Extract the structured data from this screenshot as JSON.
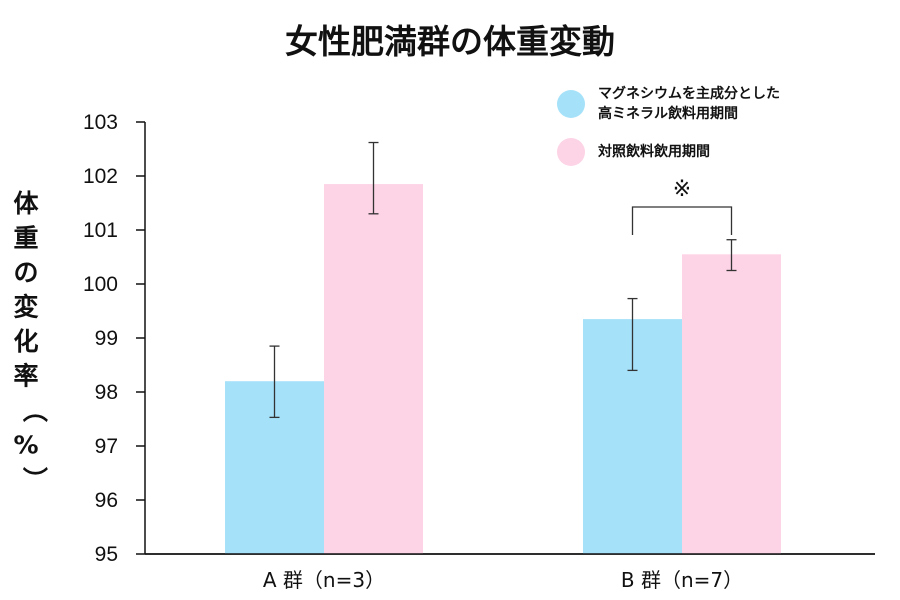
{
  "chart_data": {
    "type": "bar",
    "title": "女性肥満群の体重変動",
    "ylabel": "体重の変化率（%）",
    "xlabel": "",
    "ylim": [
      95,
      103
    ],
    "yticks": [
      95,
      96,
      97,
      98,
      99,
      100,
      101,
      102,
      103
    ],
    "categories": [
      "A 群（n=3）",
      "B 群（n=7）"
    ],
    "series": [
      {
        "name": "マグネシウムを主成分とした高ミネラル飲料用期間",
        "legend_lines": [
          "マグネシウムを主成分とした",
          "高ミネラル飲料用期間"
        ],
        "color": "#a6e1fa",
        "values": [
          98.2,
          99.35
        ],
        "error": [
          [
            97.53,
            98.85
          ],
          [
            98.4,
            99.73
          ]
        ]
      },
      {
        "name": "対照飲料飲用期間",
        "legend_lines": [
          "対照飲料飲用期間"
        ],
        "color": "#fdd3e6",
        "values": [
          101.85,
          100.55
        ],
        "error": [
          [
            101.3,
            102.62
          ],
          [
            100.25,
            100.82
          ]
        ]
      }
    ],
    "annotations": [
      {
        "text": "※",
        "category_index": 1
      }
    ],
    "grid": false,
    "legend_position": "top-right"
  }
}
